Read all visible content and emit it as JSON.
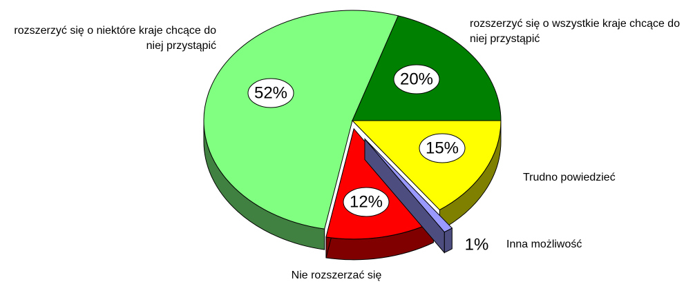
{
  "chart_data": {
    "type": "pie",
    "categories": [
      "rozszerzyć się o wszystkie kraje chcące do niej przystąpić",
      "Trudno powiedzieć",
      "Inna możliwość",
      "Nie rozszerzać się",
      "rozszerzyć się o niektóre kraje chcące do niej przystąpić"
    ],
    "values": [
      20,
      15,
      1,
      12,
      52
    ],
    "value_labels": [
      "20%",
      "15%",
      "1%",
      "12%",
      "52%"
    ],
    "colors": [
      "#008000",
      "#ffff00",
      "#9999ff",
      "#ff0000",
      "#80ff80"
    ]
  }
}
